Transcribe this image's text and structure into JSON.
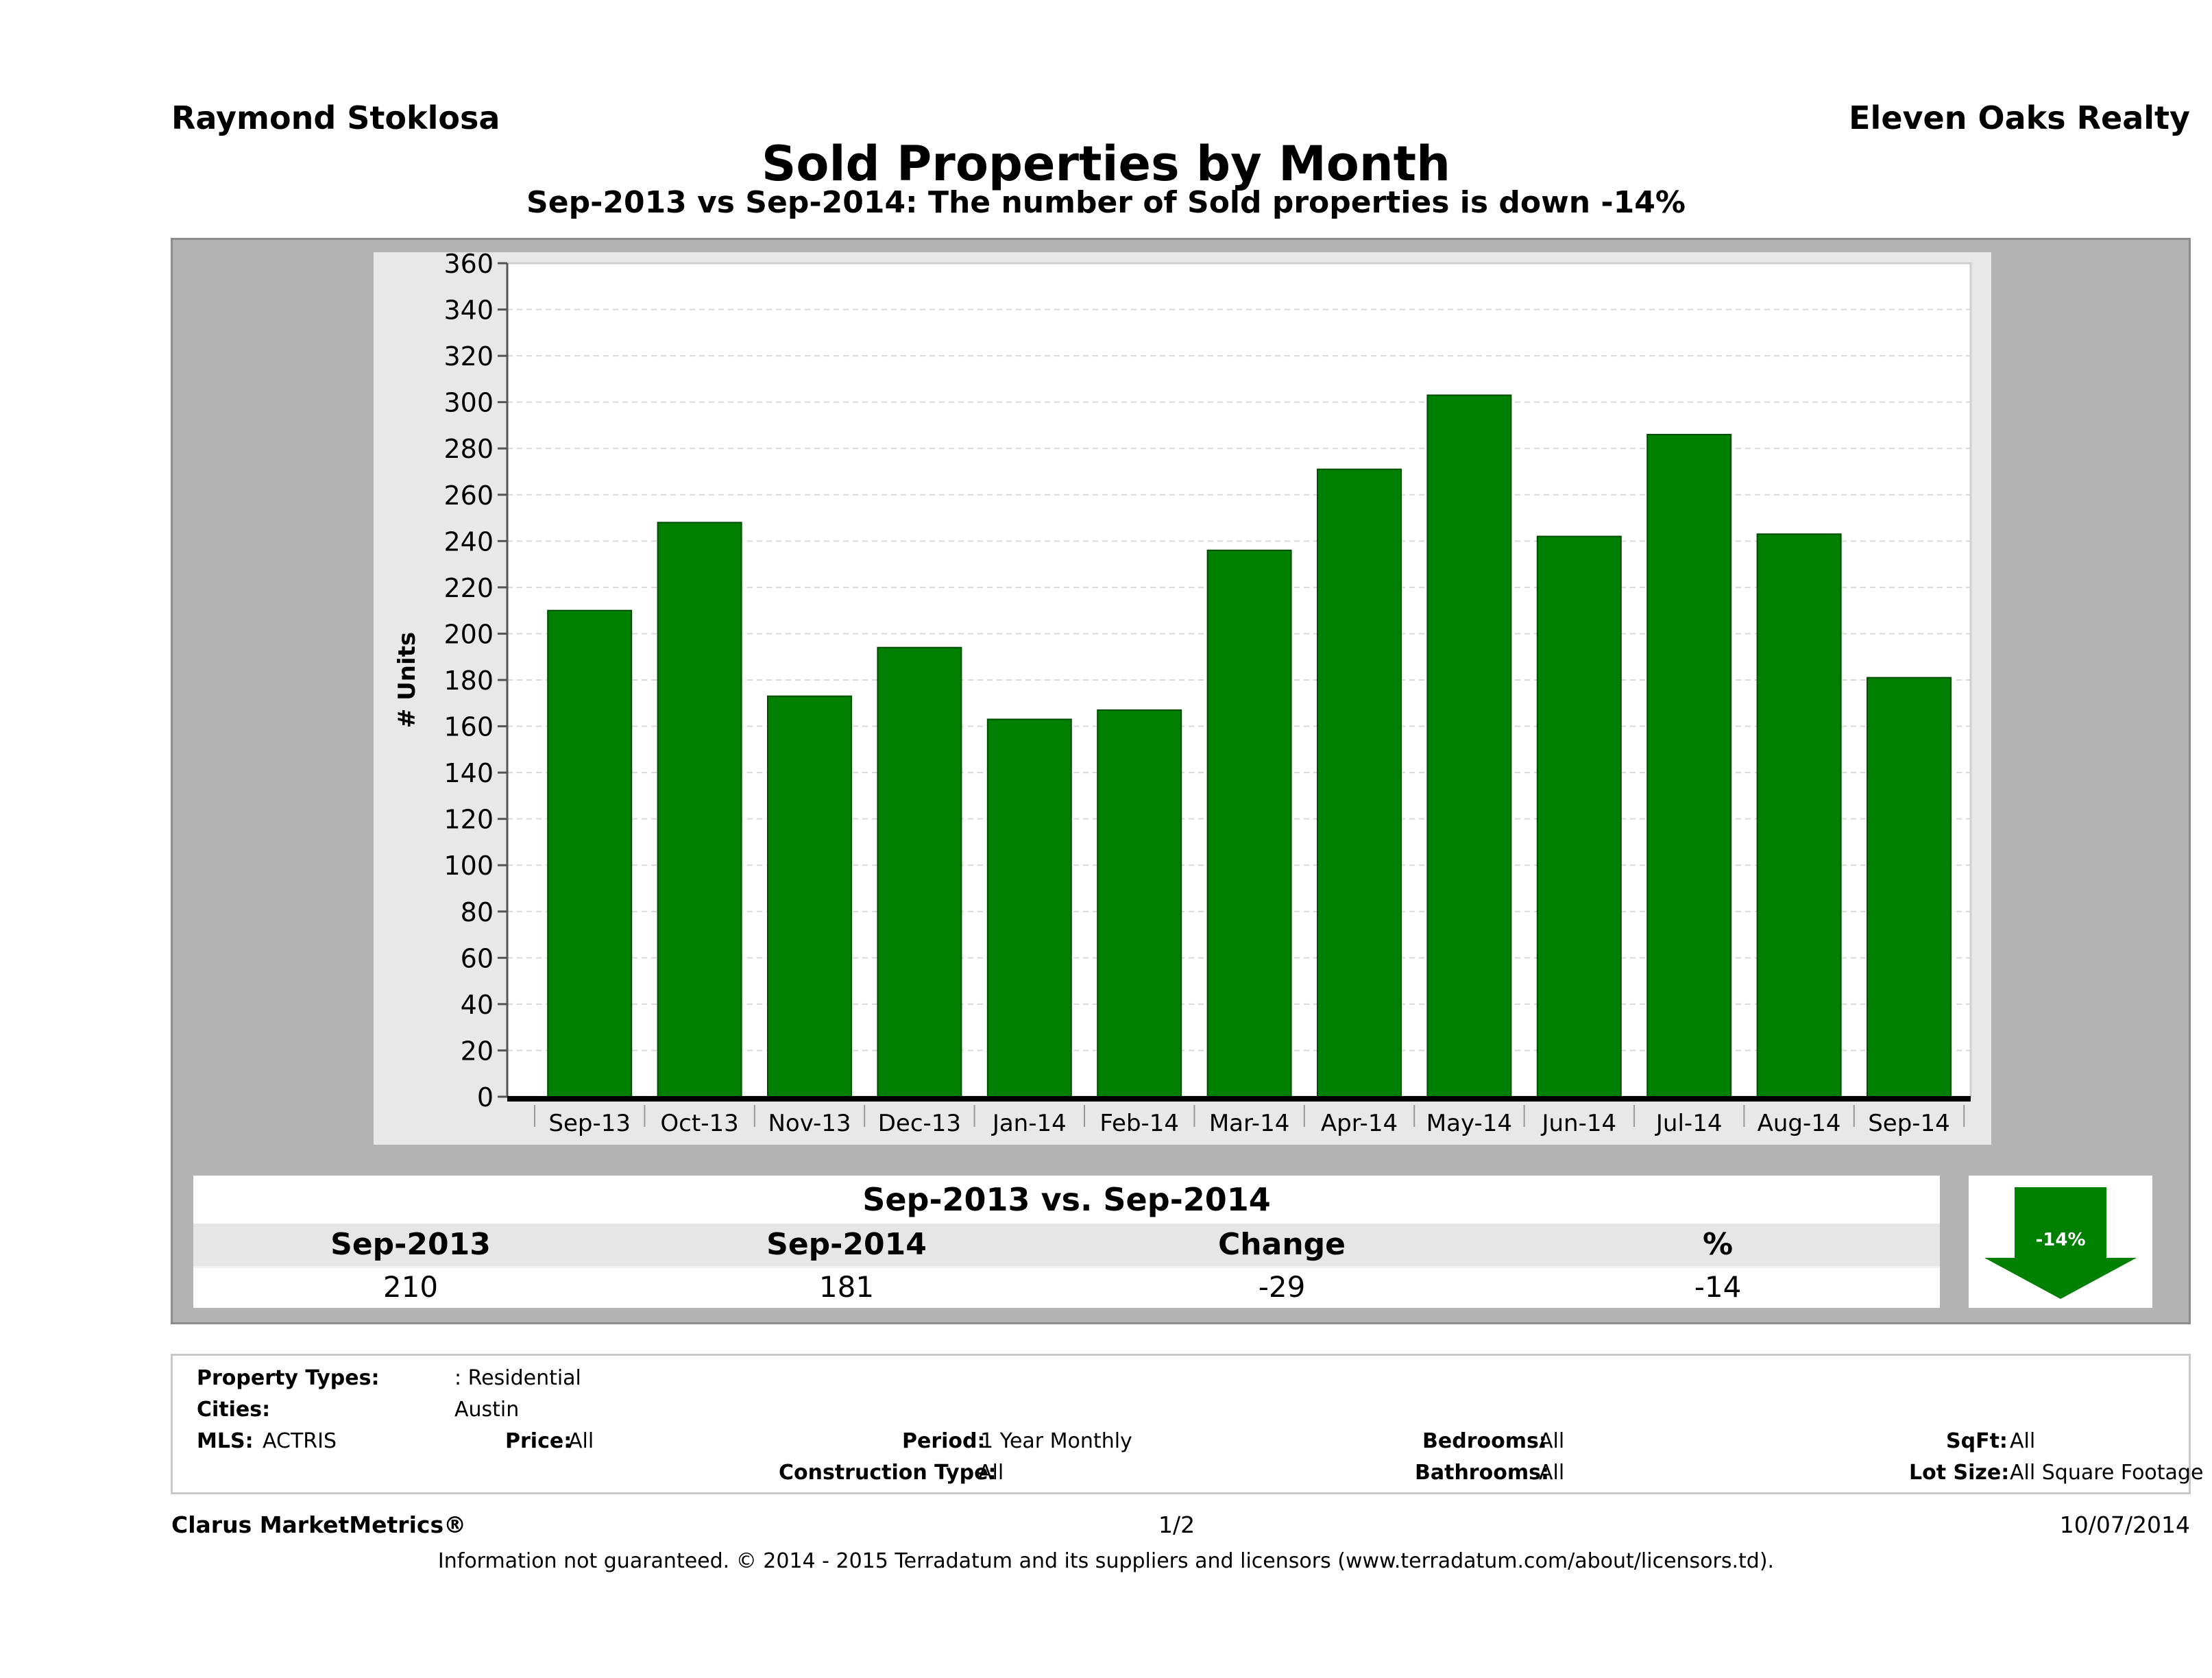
{
  "header": {
    "agent": "Raymond Stoklosa",
    "broker": "Eleven Oaks Realty",
    "title": "Sold Properties by Month",
    "subtitle": "Sep-2013 vs Sep-2014: The number of Sold  properties is down -14%"
  },
  "chart_data": {
    "type": "bar",
    "categories": [
      "Sep-13",
      "Oct-13",
      "Nov-13",
      "Dec-13",
      "Jan-14",
      "Feb-14",
      "Mar-14",
      "Apr-14",
      "May-14",
      "Jun-14",
      "Jul-14",
      "Aug-14",
      "Sep-14"
    ],
    "values": [
      210,
      248,
      173,
      194,
      163,
      167,
      236,
      271,
      303,
      242,
      286,
      243,
      181
    ],
    "ylabel": "# Units",
    "ylim": [
      0,
      360
    ],
    "yticks": [
      0,
      20,
      40,
      60,
      80,
      100,
      120,
      140,
      160,
      180,
      200,
      220,
      240,
      260,
      280,
      300,
      320,
      340,
      360
    ],
    "bar_color": "#008000",
    "grid": true
  },
  "comparison": {
    "title": "Sep-2013 vs. Sep-2014",
    "labels": [
      "Sep-2013",
      "Sep-2014",
      "Change",
      "%"
    ],
    "values": [
      "210",
      "181",
      "-29",
      "-14"
    ],
    "badge": "-14%",
    "badge_color": "#008000"
  },
  "filters": {
    "property_types_label": "Property Types:",
    "property_types_value": ": Residential",
    "cities_label": "Cities:",
    "cities_value": "Austin",
    "mls_label": "MLS:",
    "mls_value": "ACTRIS",
    "price_label": "Price:",
    "price_value": "All",
    "period_label": "Period:",
    "period_value": "1 Year Monthly",
    "construction_label": "Construction Type:",
    "construction_value": "All",
    "bedrooms_label": "Bedrooms:",
    "bedrooms_value": "All",
    "bathrooms_label": "Bathrooms:",
    "bathrooms_value": "All",
    "sqft_label": "SqFt:",
    "sqft_value": "All",
    "lot_label": "Lot Size:",
    "lot_value": "All Square Footage"
  },
  "footer": {
    "brand": "Clarus MarketMetrics®",
    "page": "1/2",
    "date": "10/07/2014",
    "disclaimer": "Information not guaranteed. © 2014 - 2015 Terradatum and its suppliers and licensors (www.terradatum.com/about/licensors.td)."
  }
}
